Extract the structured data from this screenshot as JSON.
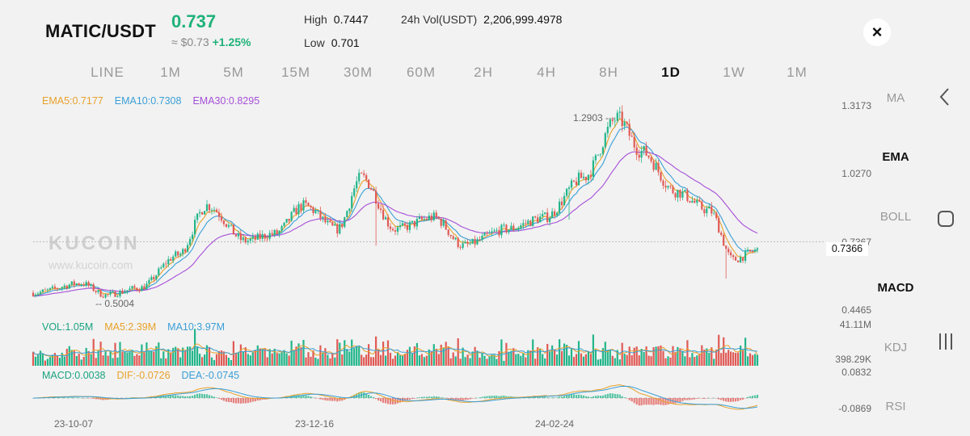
{
  "header": {
    "pair": "MATIC/USDT",
    "price": "0.737",
    "approx": "≈ $0.73",
    "change": "+1.25%",
    "high_label": "High",
    "high_value": "0.7447",
    "low_label": "Low",
    "low_value": "0.701",
    "vol_label": "24h Vol(USDT)",
    "vol_value": "2,206,999.4978",
    "close_symbol": "×"
  },
  "tabs": [
    "LINE",
    "1M",
    "5M",
    "15M",
    "30M",
    "60M",
    "2H",
    "4H",
    "8H",
    "1D",
    "1W",
    "1M"
  ],
  "active_tab": "1D",
  "indicators": [
    "MA",
    "EMA",
    "BOLL",
    "MACD",
    "KDJ",
    "RSI"
  ],
  "active_indicators": [
    "EMA",
    "MACD"
  ],
  "legend": {
    "ema5": "EMA5:0.7177",
    "ema10": "EMA10:0.7308",
    "ema30": "EMA30:0.8295",
    "vol": "VOL:1.05M",
    "vol_ma5": "MA5:2.39M",
    "vol_ma10": "MA10:3.97M",
    "macd": "MACD:0.0038",
    "dif": "DIF:-0.0726",
    "dea": "DEA:-0.0745"
  },
  "axis": {
    "price_ticks": [
      "1.3173",
      "1.0270",
      "0.7367",
      "0.4465"
    ],
    "current_price": "0.7366",
    "volume_ticks": [
      "41.11M",
      "398.29K"
    ],
    "macd_ticks": [
      "0.0832",
      "-0.0869"
    ],
    "dates": [
      "23-10-07",
      "23-12-16",
      "24-02-24"
    ],
    "peak_label": "1.2903",
    "low_label": "0.5004"
  },
  "watermark": {
    "brand": "KUCOIN",
    "url": "www.kucoin.com"
  },
  "colors": {
    "up": "#22b58a",
    "down": "#e05a55",
    "ema5": "#e8a12a",
    "ema10": "#3a9fd6",
    "ema30": "#a64fd8",
    "accent": "#1fb27a"
  },
  "chart_data": {
    "type": "candlestick",
    "price_range": [
      0.4465,
      1.3173
    ],
    "trend_anchors": [
      [
        0,
        0.52
      ],
      [
        20,
        0.56
      ],
      [
        30,
        0.51
      ],
      [
        44,
        0.54
      ],
      [
        60,
        0.68
      ],
      [
        72,
        0.89
      ],
      [
        88,
        0.74
      ],
      [
        100,
        0.77
      ],
      [
        112,
        0.89
      ],
      [
        126,
        0.79
      ],
      [
        136,
        1.01
      ],
      [
        150,
        0.79
      ],
      [
        166,
        0.84
      ],
      [
        178,
        0.72
      ],
      [
        196,
        0.79
      ],
      [
        212,
        0.84
      ],
      [
        228,
        1.01
      ],
      [
        242,
        1.26
      ],
      [
        252,
        1.12
      ],
      [
        266,
        0.95
      ],
      [
        280,
        0.87
      ],
      [
        290,
        0.66
      ],
      [
        300,
        0.7
      ]
    ],
    "series": [
      {
        "name": "EMA5",
        "color": "#e8a12a"
      },
      {
        "name": "EMA10",
        "color": "#3a9fd6"
      },
      {
        "name": "EMA30",
        "color": "#a64fd8"
      }
    ]
  }
}
